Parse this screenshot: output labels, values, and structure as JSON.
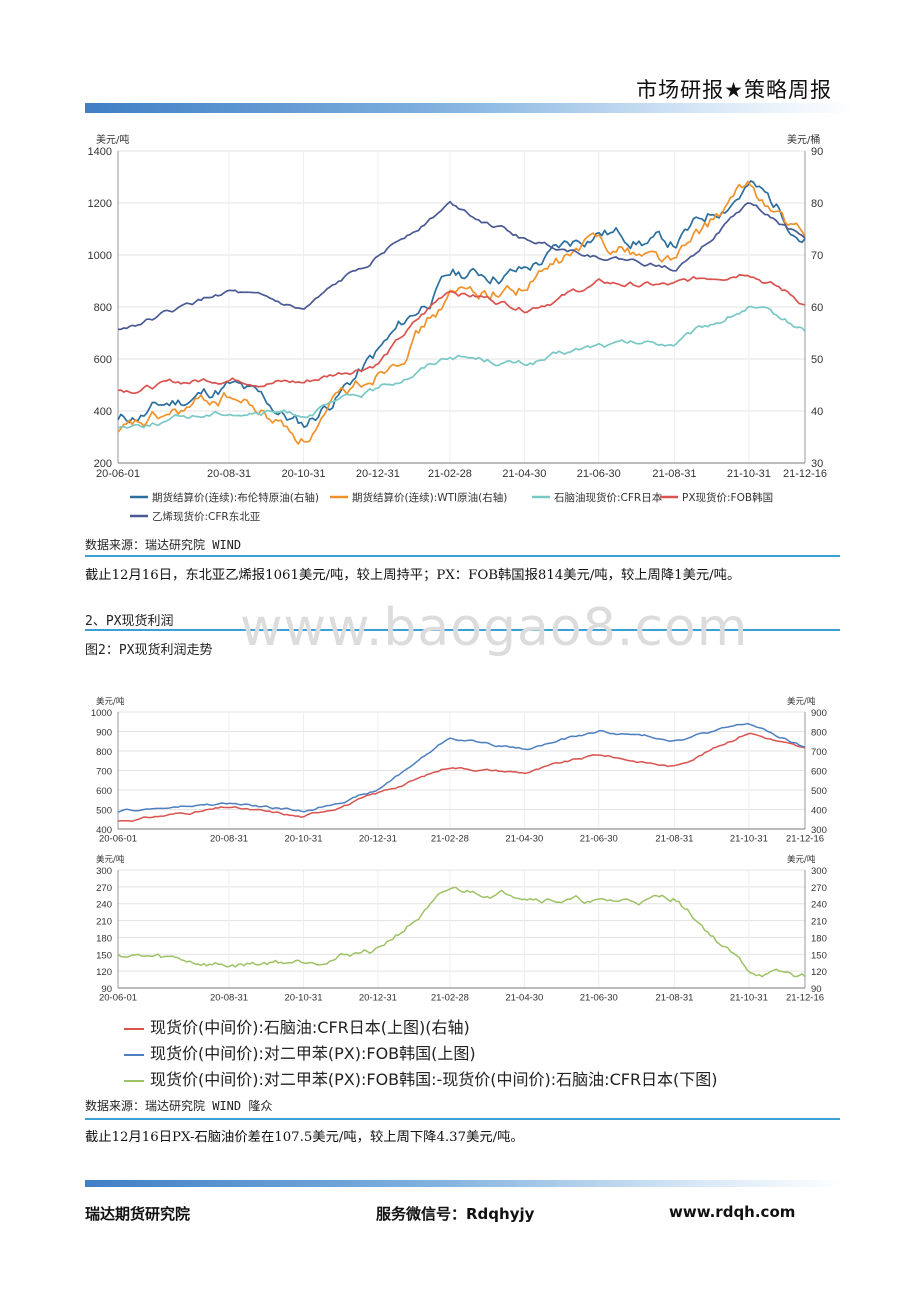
{
  "header": {
    "title": "市场研报★策略周报"
  },
  "chart1": {
    "left_unit": "美元/吨",
    "right_unit": "美元/桶",
    "left_ticks": [
      "1400",
      "1200",
      "1000",
      "800",
      "600",
      "400",
      "200"
    ],
    "right_ticks": [
      "90",
      "80",
      "70",
      "60",
      "50",
      "40",
      "30"
    ],
    "x_ticks": [
      "20-06-01",
      "20-08-31",
      "20-10-31",
      "20-12-31",
      "21-02-28",
      "21-04-30",
      "21-06-30",
      "21-08-31",
      "21-10-31",
      "21-12-16"
    ],
    "legend": [
      "期货结算价(连续):布伦特原油(右轴)",
      "期货结算价(连续):WTI原油(右轴)",
      "石脑油现货价:CFR日本",
      "PX现货价:FOB韩国",
      "乙烯现货价:CFR东北亚"
    ]
  },
  "source1": "数据来源：瑞达研究院 WIND",
  "para1": "截止12月16日，东北亚乙烯报1061美元/吨，较上周持平；PX：FOB韩国报814美元/吨，较上周降1美元/吨。",
  "section2": {
    "heading": "2、PX现货利润",
    "figure_title": "图2：PX现货利润走势"
  },
  "chart2_top": {
    "left_unit": "美元/吨",
    "right_unit": "美元/吨",
    "left_ticks": [
      "1000",
      "900",
      "800",
      "700",
      "600",
      "500",
      "400"
    ],
    "right_ticks": [
      "900",
      "800",
      "700",
      "600",
      "500",
      "400",
      "300"
    ],
    "x_ticks": [
      "20-06-01",
      "20-08-31",
      "20-10-31",
      "20-12-31",
      "21-02-28",
      "21-04-30",
      "21-06-30",
      "21-08-31",
      "21-10-31",
      "21-12-16"
    ]
  },
  "chart2_bottom": {
    "left_unit": "美元/吨",
    "right_unit": "美元/吨",
    "left_ticks": [
      "300",
      "270",
      "240",
      "210",
      "180",
      "150",
      "120",
      "90"
    ],
    "right_ticks": [
      "300",
      "270",
      "240",
      "210",
      "180",
      "150",
      "120",
      "90"
    ],
    "x_ticks": [
      "20-06-01",
      "20-08-31",
      "20-10-31",
      "20-12-31",
      "21-02-28",
      "21-04-30",
      "21-06-30",
      "21-08-31",
      "21-10-31",
      "21-12-16"
    ]
  },
  "legend2": [
    "现货价(中间价):石脑油:CFR日本(上图)(右轴)",
    "现货价(中间价):对二甲苯(PX):FOB韩国(上图)",
    "现货价(中间价):对二甲苯(PX):FOB韩国:-现货价(中间价):石脑油:CFR日本(下图)"
  ],
  "source2": "数据来源：瑞达研究院 WIND  隆众",
  "para2": "截止12月16日PX-石脑油价差在107.5美元/吨，较上周下降4.37美元/吨。",
  "watermark": "www.baogao8.com",
  "footer": {
    "org": "瑞达期货研究院",
    "wechat": "服务微信号：Rdqhyjy",
    "url": "www.rdqh.com"
  },
  "colors": {
    "brent": "#2c6f9e",
    "wti": "#f0922a",
    "naphtha": "#79c8c6",
    "px": "#d9534f",
    "ethylene": "#4a5a94",
    "px_blue": "#4f7fc1",
    "spread": "#9dc266",
    "rule": "#3d9fd8"
  },
  "chart_data": [
    {
      "type": "line",
      "x_range": [
        "20-06-01",
        "21-12-16"
      ],
      "ylim_left": [
        200,
        1400
      ],
      "ylim_right": [
        30,
        90
      ],
      "grid": true,
      "legend_position": "bottom",
      "series": [
        {
          "name": "期货结算价(连续):布伦特原油(右轴)",
          "axis": "right",
          "x": [
            "20-06-01",
            "20-08-31",
            "20-10-31",
            "20-12-31",
            "21-02-28",
            "21-04-30",
            "21-06-30",
            "21-08-31",
            "21-10-31",
            "21-12-16"
          ],
          "values": [
            38,
            45,
            37,
            51,
            66,
            67,
            75,
            72,
            84,
            74
          ]
        },
        {
          "name": "期货结算价(连续):WTI原油(右轴)",
          "axis": "right",
          "x": [
            "20-06-01",
            "20-08-31",
            "20-10-31",
            "20-12-31",
            "21-02-28",
            "21-04-30",
            "21-06-30",
            "21-08-31",
            "21-10-31",
            "21-12-16"
          ],
          "values": [
            35,
            43,
            35,
            48,
            62,
            64,
            73,
            69,
            83,
            72
          ]
        },
        {
          "name": "石脑油现货价:CFR日本",
          "axis": "left",
          "x": [
            "20-06-01",
            "20-08-31",
            "20-10-31",
            "20-12-31",
            "21-02-28",
            "21-04-30",
            "21-06-30",
            "21-08-31",
            "21-10-31",
            "21-12-16"
          ],
          "values": [
            340,
            400,
            390,
            480,
            620,
            580,
            650,
            660,
            800,
            710
          ]
        },
        {
          "name": "PX现货价:FOB韩国",
          "axis": "left",
          "x": [
            "20-06-01",
            "20-08-31",
            "20-10-31",
            "20-12-31",
            "21-02-28",
            "21-04-30",
            "21-06-30",
            "21-08-31",
            "21-10-31",
            "21-12-16"
          ],
          "values": [
            480,
            530,
            510,
            590,
            870,
            800,
            890,
            880,
            950,
            814
          ]
        },
        {
          "name": "乙烯现货价:CFR东北亚",
          "axis": "left",
          "x": [
            "20-06-01",
            "20-08-31",
            "20-10-31",
            "20-12-31",
            "21-02-28",
            "21-04-30",
            "21-06-30",
            "21-08-31",
            "21-10-31",
            "21-12-16"
          ],
          "values": [
            710,
            860,
            780,
            1000,
            1200,
            1060,
            1000,
            950,
            1200,
            1061
          ]
        }
      ]
    },
    {
      "type": "line",
      "ylim_left": [
        400,
        1000
      ],
      "ylim_right": [
        300,
        900
      ],
      "series": [
        {
          "name": "现货价(中间价):石脑油:CFR日本(上图)(右轴)",
          "axis": "right",
          "x": [
            "20-06-01",
            "20-08-31",
            "20-10-31",
            "20-12-31",
            "21-02-28",
            "21-04-30",
            "21-06-30",
            "21-08-31",
            "21-10-31",
            "21-12-16"
          ],
          "values": [
            340,
            410,
            360,
            480,
            620,
            590,
            680,
            620,
            800,
            707
          ]
        },
        {
          "name": "现货价(中间价):对二甲苯(PX):FOB韩国(上图)",
          "axis": "left",
          "x": [
            "20-06-01",
            "20-08-31",
            "20-10-31",
            "20-12-31",
            "21-02-28",
            "21-04-30",
            "21-06-30",
            "21-08-31",
            "21-10-31",
            "21-12-16"
          ],
          "values": [
            490,
            530,
            490,
            600,
            870,
            810,
            900,
            860,
            940,
            814
          ]
        }
      ]
    },
    {
      "type": "line",
      "ylim_left": [
        90,
        300
      ],
      "ylim_right": [
        90,
        300
      ],
      "series": [
        {
          "name": "现货价(中间价):对二甲苯(PX):FOB韩国:-现货价(中间价):石脑油:CFR日本(下图)",
          "axis": "left",
          "x": [
            "20-06-01",
            "20-08-31",
            "20-10-31",
            "20-12-31",
            "21-02-28",
            "21-04-30",
            "21-06-30",
            "21-08-31",
            "21-10-31",
            "21-12-16"
          ],
          "values": [
            150,
            130,
            140,
            160,
            260,
            260,
            240,
            250,
            120,
            107.5
          ]
        }
      ]
    }
  ]
}
